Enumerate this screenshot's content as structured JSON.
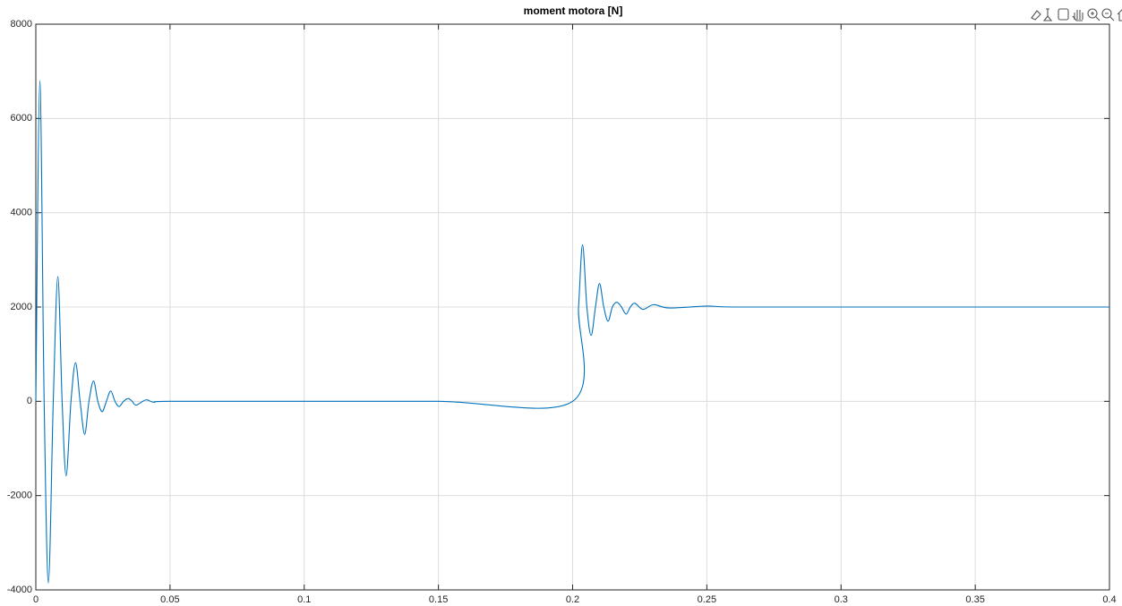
{
  "chart_data": {
    "type": "line",
    "title": "moment motora [N]",
    "color": "#0072bd",
    "grid": true,
    "xlim": [
      0,
      0.4
    ],
    "ylim": [
      -4000,
      8000
    ],
    "xticks": [
      0,
      0.05,
      0.1,
      0.15,
      0.2,
      0.25,
      0.3,
      0.35,
      0.4
    ],
    "yticks": [
      -4000,
      -2000,
      0,
      2000,
      4000,
      6000,
      8000
    ],
    "x": [
      0,
      0.0015,
      0.0031,
      0.0047,
      0.0065,
      0.0082,
      0.0098,
      0.0113,
      0.0131,
      0.0148,
      0.0165,
      0.0182,
      0.0198,
      0.0215,
      0.0231,
      0.0247,
      0.0263,
      0.0279,
      0.0295,
      0.031,
      0.0327,
      0.0344,
      0.0359,
      0.0374,
      0.041,
      0.044,
      0.05,
      0.1,
      0.15,
      0.2,
      0.2022,
      0.2037,
      0.2053,
      0.2069,
      0.2085,
      0.21,
      0.2116,
      0.2132,
      0.2148,
      0.2165,
      0.2182,
      0.2199,
      0.2215,
      0.2232,
      0.2262,
      0.2302,
      0.236,
      0.25,
      0.26,
      0.3,
      0.35,
      0.4
    ],
    "values": [
      0,
      6800,
      0,
      -3850,
      0,
      2650,
      0,
      -1580,
      0,
      820,
      0,
      -700,
      0,
      430,
      0,
      -220,
      0,
      220,
      0,
      -110,
      0,
      60,
      0,
      -80,
      30,
      -20,
      0,
      0,
      0,
      0,
      2000,
      3320,
      2000,
      1400,
      2000,
      2500,
      2000,
      1700,
      2000,
      2100,
      2000,
      1850,
      2000,
      2080,
      1950,
      2050,
      1980,
      2020,
      2000,
      2000,
      2000,
      2000
    ]
  }
}
